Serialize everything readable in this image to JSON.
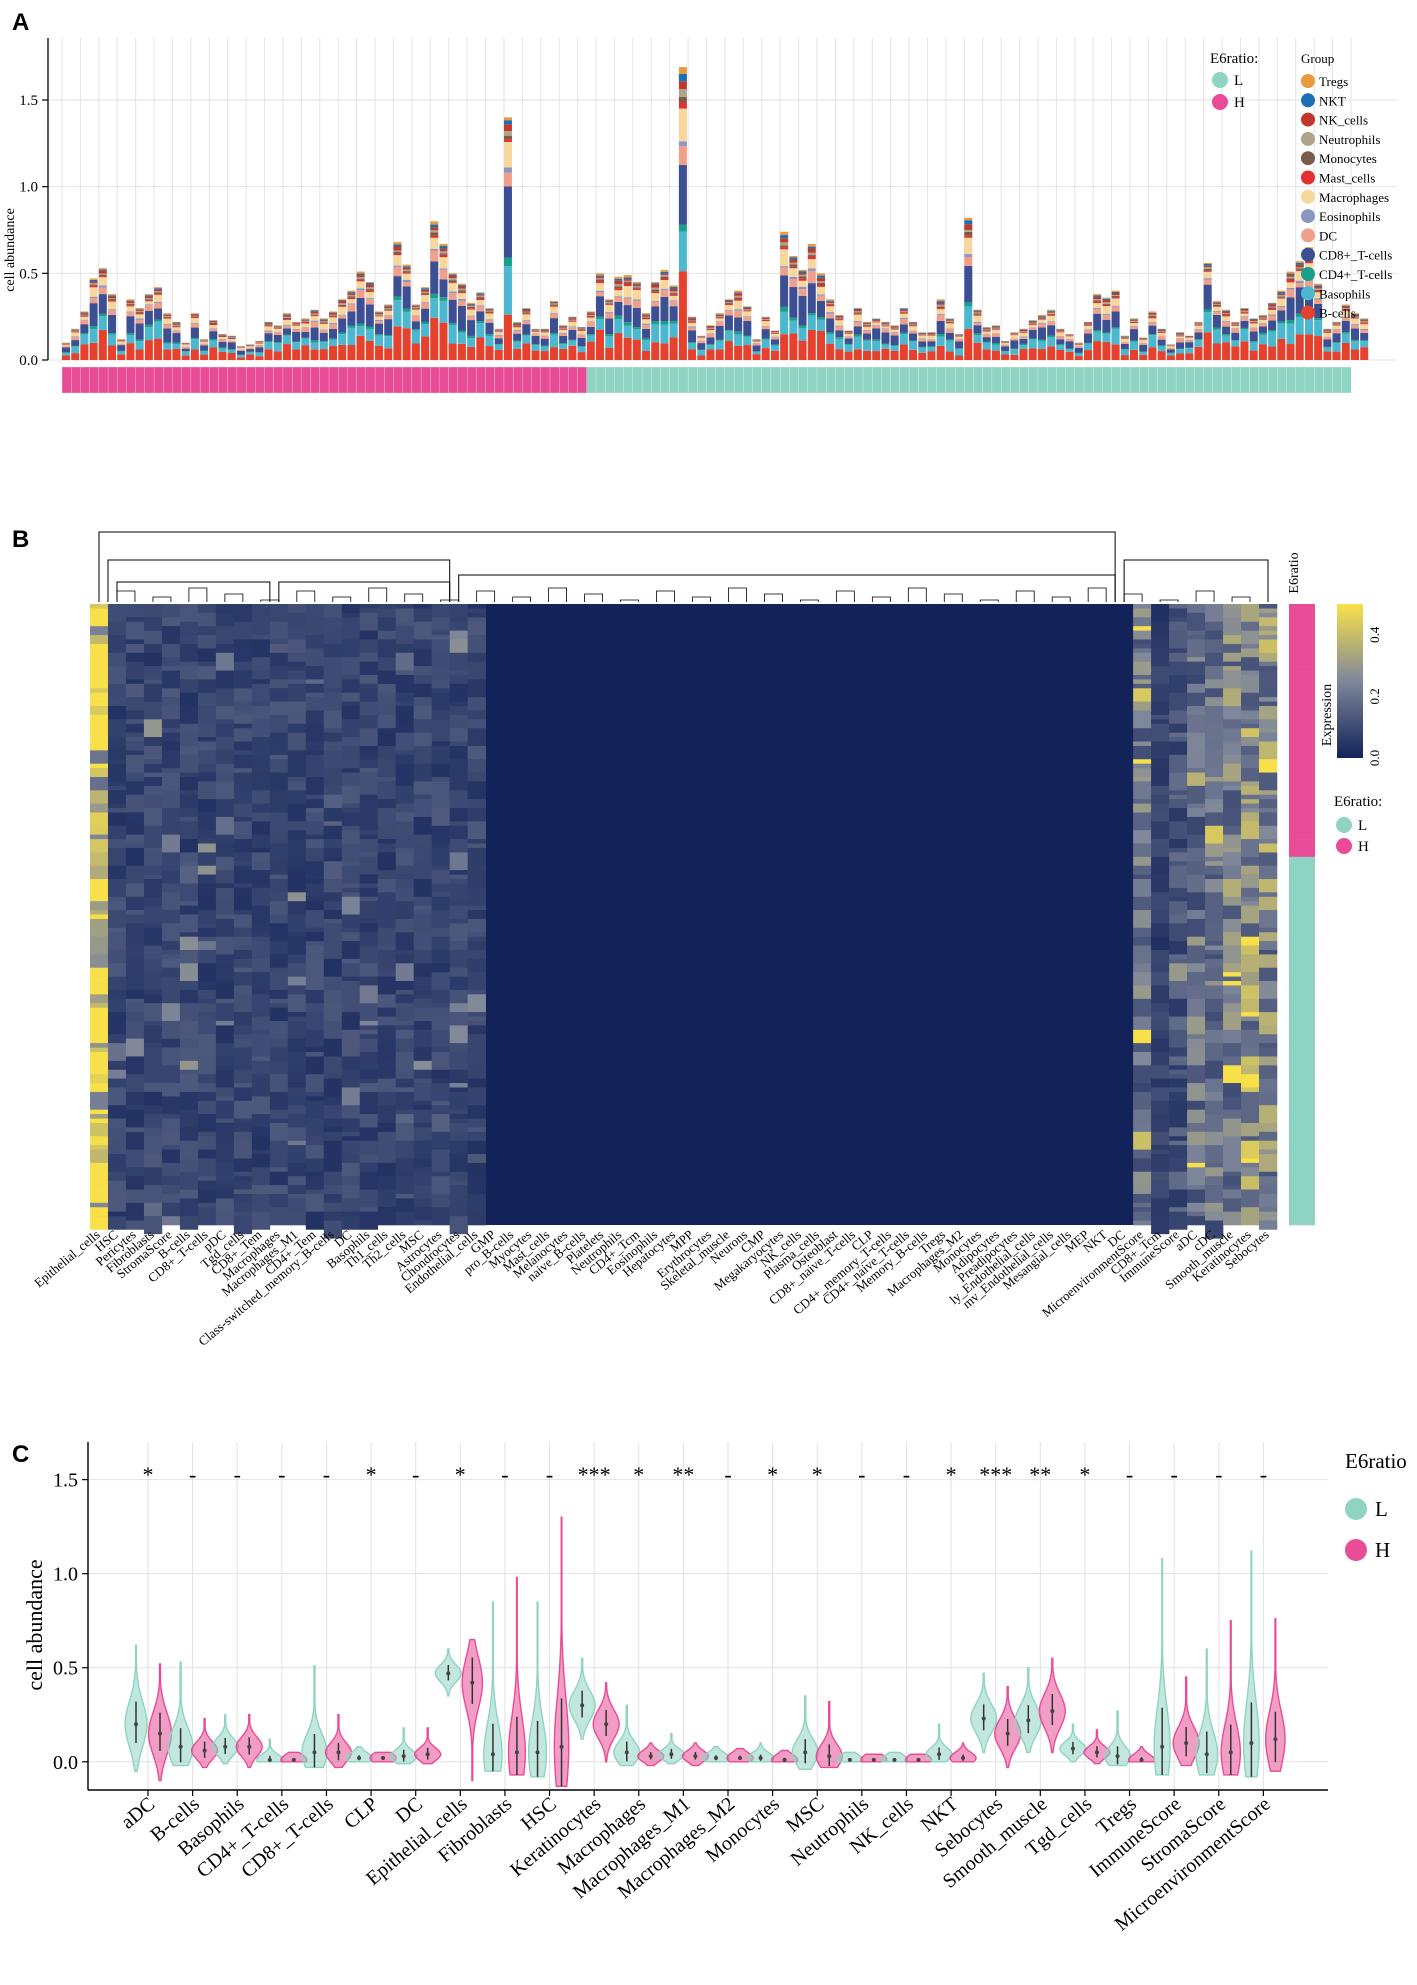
{
  "panels": {
    "a": "A",
    "b": "B",
    "c": "C"
  },
  "chart_data": [
    {
      "type": "bar",
      "stacked": true,
      "title": "",
      "xlabel": "",
      "ylabel": "cell abundance",
      "ylim": [
        0,
        1.8
      ],
      "y_ticks": [
        0.0,
        0.5,
        1.0,
        1.5
      ],
      "y_tick_labels": [
        "0.0",
        "0.5",
        "1.0",
        "1.5"
      ],
      "grid": true,
      "n_samples": 140,
      "n_high": 57,
      "sample_totals": [
        0.1,
        0.18,
        0.28,
        0.47,
        0.53,
        0.38,
        0.12,
        0.35,
        0.3,
        0.38,
        0.42,
        0.27,
        0.22,
        0.1,
        0.27,
        0.12,
        0.23,
        0.15,
        0.14,
        0.08,
        0.09,
        0.11,
        0.22,
        0.2,
        0.27,
        0.22,
        0.24,
        0.29,
        0.24,
        0.28,
        0.35,
        0.4,
        0.51,
        0.45,
        0.28,
        0.32,
        0.68,
        0.55,
        0.32,
        0.42,
        0.8,
        0.67,
        0.5,
        0.44,
        0.33,
        0.39,
        0.3,
        0.18,
        1.4,
        0.22,
        0.3,
        0.18,
        0.18,
        0.34,
        0.2,
        0.25,
        0.19,
        0.28,
        0.5,
        0.35,
        0.48,
        0.49,
        0.45,
        0.27,
        0.45,
        0.52,
        0.43,
        1.69,
        0.25,
        0.14,
        0.2,
        0.27,
        0.35,
        0.4,
        0.31,
        0.12,
        0.25,
        0.17,
        0.74,
        0.6,
        0.52,
        0.67,
        0.5,
        0.35,
        0.26,
        0.17,
        0.3,
        0.22,
        0.24,
        0.22,
        0.2,
        0.3,
        0.22,
        0.16,
        0.16,
        0.35,
        0.24,
        0.15,
        0.82,
        0.29,
        0.19,
        0.2,
        0.11,
        0.16,
        0.18,
        0.23,
        0.26,
        0.29,
        0.18,
        0.15,
        0.1,
        0.22,
        0.38,
        0.36,
        0.4,
        0.14,
        0.24,
        0.13,
        0.28,
        0.18,
        0.09,
        0.16,
        0.14,
        0.22,
        0.56,
        0.34,
        0.29,
        0.22,
        0.3,
        0.24,
        0.26,
        0.33,
        0.4,
        0.51,
        0.57,
        0.65,
        0.44,
        0.18,
        0.22,
        0.32,
        0.27,
        0.24
      ],
      "legend_ratio_title": "E6ratio:",
      "legend_ratio": [
        {
          "label": "L",
          "color": "#8fd3c2"
        },
        {
          "label": "H",
          "color": "#e84c96"
        }
      ],
      "legend_group_title": "Group",
      "groups": [
        {
          "name": "Tregs",
          "color": "#e89a3c"
        },
        {
          "name": "NKT",
          "color": "#1c6eb6"
        },
        {
          "name": "NK_cells",
          "color": "#c0392b"
        },
        {
          "name": "Neutrophils",
          "color": "#b0a38c"
        },
        {
          "name": "Monocytes",
          "color": "#7a5a48"
        },
        {
          "name": "Mast_cells",
          "color": "#e03030"
        },
        {
          "name": "Macrophages",
          "color": "#f7d79b"
        },
        {
          "name": "Eosinophils",
          "color": "#8b96c4"
        },
        {
          "name": "DC",
          "color": "#f0a08a"
        },
        {
          "name": "CD8+_T-cells",
          "color": "#3c4f92"
        },
        {
          "name": "CD4+_T-cells",
          "color": "#1aa08a"
        },
        {
          "name": "Basophils",
          "color": "#4cb8d0"
        },
        {
          "name": "B-cells",
          "color": "#e5412d"
        }
      ]
    },
    {
      "type": "heatmap",
      "title": "",
      "colorbar_title": "Expression",
      "colorbar_range": [
        0.0,
        0.5
      ],
      "colorbar_ticks": [
        0.0,
        0.2,
        0.4
      ],
      "colorbar_tick_labels": [
        "0.0",
        "0.2",
        "0.4"
      ],
      "colors": {
        "low": "#13235a",
        "mid": "#7f879a",
        "high": "#f8e04a"
      },
      "annotation_title": "E6ratio",
      "legend_title": "E6ratio:",
      "legend": [
        {
          "label": "L",
          "color": "#8fd3c2"
        },
        {
          "label": "H",
          "color": "#e84c96"
        }
      ],
      "n_rows": 140,
      "n_high": 57,
      "columns": [
        "Epithelial_cells",
        "HSC",
        "Pericytes",
        "Fibroblasts",
        "StromaScore",
        "B-cells",
        "CD8+_T-cells",
        "pDC",
        "Tgd_cells",
        "CD8+_Tem",
        "Macrophages",
        "Macrophages_M1",
        "CD4+_Tem",
        "Class-switched_memory_B-cells",
        "DC",
        "Basophils",
        "Th1_cells",
        "Th2_cells",
        "MSC",
        "Astrocytes",
        "Chondrocytes",
        "Endothelial_cells",
        "GMP",
        "pro_B-cells",
        "Myocytes",
        "Mast_cells",
        "Melanocytes",
        "naive_B-cells",
        "Platelets",
        "Neutrophils",
        "CD4+_Tcm",
        "Eosinophils",
        "Hepatocytes",
        "MPP",
        "Erythrocytes",
        "Skeletal_muscle",
        "Neurons",
        "CMP",
        "Megakaryocytes",
        "NK_cells",
        "Plasma_cells",
        "Osteoblast",
        "CD8+_naive_T-cells",
        "CLP",
        "CD4+_memory_T-cells",
        "CD4+_naive_T-cells",
        "Memory_B-cells",
        "Tregs",
        "Macrophages_M2",
        "Monocytes",
        "Adipocytes",
        "Preadipocytes",
        "ly_Endothelial_cells",
        "mv_Endothelial_cells",
        "Mesangial_cells",
        "MEP",
        "NKT",
        "DC",
        "MicroenvironmentScore",
        "CD8+_Tcm",
        "ImmuneScore",
        "aDC",
        "cDC",
        "Smooth_muscle",
        "Keratinocytes",
        "Sebocytes"
      ]
    },
    {
      "type": "violin",
      "title": "",
      "xlabel": "",
      "ylabel": "cell abundance",
      "ylim": [
        -0.15,
        1.7
      ],
      "y_ticks": [
        0.0,
        0.5,
        1.0,
        1.5
      ],
      "y_tick_labels": [
        "0.0",
        "0.5",
        "1.0",
        "1.5"
      ],
      "legend_title": "E6ratio",
      "legend": [
        {
          "label": "L",
          "color": "#8fd3c2"
        },
        {
          "label": "H",
          "color": "#e84c96"
        }
      ],
      "categories": [
        "aDC",
        "B-cells",
        "Basophils",
        "CD4+_T-cells",
        "CD8+_T-cells",
        "CLP",
        "DC",
        "Epithelial_cells",
        "Fibroblasts",
        "HSC",
        "Keratinocytes",
        "Macrophages",
        "Macrophages_M1",
        "Macrophages_M2",
        "Monocytes",
        "MSC",
        "Neutrophils",
        "NK_cells",
        "NKT",
        "Sebocytes",
        "Smooth_muscle",
        "Tgd_cells",
        "Tregs",
        "ImmuneScore",
        "StromaScore",
        "MicroenvironmentScore"
      ],
      "significance": [
        "*",
        "-",
        "-",
        "-",
        "-",
        "*",
        "-",
        "*",
        "-",
        "-",
        "***",
        "*",
        "**",
        "-",
        "*",
        "*",
        "-",
        "-",
        "*",
        "***",
        "**",
        "*",
        "-",
        "-",
        "-",
        "-"
      ],
      "series": [
        {
          "name": "L",
          "color": "#8fd3c2",
          "center": [
            0.2,
            0.08,
            0.08,
            0.01,
            0.05,
            0.02,
            0.03,
            0.47,
            0.04,
            0.05,
            0.3,
            0.05,
            0.04,
            0.02,
            0.02,
            0.05,
            0.01,
            0.01,
            0.04,
            0.23,
            0.22,
            0.07,
            0.03,
            0.08,
            0.04,
            0.1
          ],
          "min": [
            -0.05,
            -0.02,
            -0.01,
            0.0,
            -0.03,
            0.0,
            -0.01,
            0.35,
            -0.05,
            -0.08,
            0.12,
            -0.02,
            -0.01,
            0.0,
            0.0,
            -0.04,
            0.0,
            0.0,
            0.0,
            0.05,
            0.05,
            0.0,
            -0.02,
            -0.07,
            -0.07,
            -0.08
          ],
          "max": [
            0.62,
            0.53,
            0.25,
            0.12,
            0.51,
            0.08,
            0.18,
            0.6,
            0.85,
            0.85,
            0.55,
            0.3,
            0.15,
            0.08,
            0.1,
            0.35,
            0.05,
            0.05,
            0.2,
            0.47,
            0.5,
            0.2,
            0.27,
            1.08,
            0.6,
            1.12
          ]
        },
        {
          "name": "H",
          "color": "#e84c96",
          "center": [
            0.15,
            0.06,
            0.08,
            0.01,
            0.05,
            0.02,
            0.04,
            0.42,
            0.05,
            0.08,
            0.2,
            0.03,
            0.03,
            0.02,
            0.01,
            0.03,
            0.01,
            0.01,
            0.02,
            0.15,
            0.27,
            0.05,
            0.01,
            0.1,
            0.05,
            0.12
          ],
          "min": [
            -0.1,
            -0.03,
            -0.03,
            0.0,
            -0.03,
            0.0,
            -0.01,
            -0.1,
            -0.07,
            -0.13,
            0.0,
            -0.02,
            -0.02,
            0.0,
            0.0,
            -0.03,
            0.0,
            0.0,
            0.0,
            -0.03,
            0.05,
            -0.01,
            0.0,
            -0.02,
            -0.07,
            -0.05
          ],
          "max": [
            0.52,
            0.23,
            0.25,
            0.05,
            0.25,
            0.05,
            0.18,
            0.65,
            0.98,
            1.3,
            0.42,
            0.1,
            0.1,
            0.07,
            0.06,
            0.32,
            0.04,
            0.04,
            0.1,
            0.4,
            0.55,
            0.17,
            0.08,
            0.45,
            0.75,
            0.76
          ]
        }
      ]
    }
  ]
}
